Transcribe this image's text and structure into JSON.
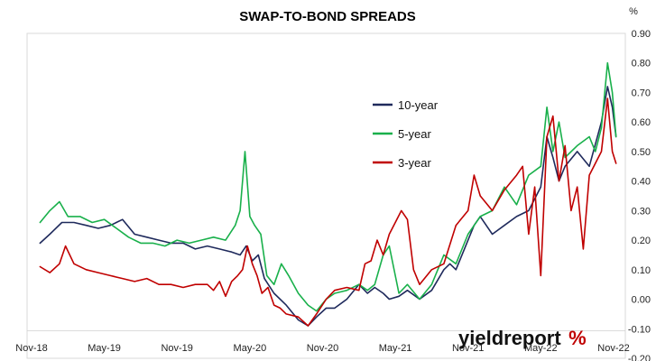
{
  "chart_data": {
    "type": "line",
    "title": "SWAP-TO-BOND SPREADS",
    "unit_label": "%",
    "x_ticks": [
      "Nov-18",
      "May-19",
      "Nov-19",
      "May-20",
      "Nov-20",
      "May-21",
      "Nov-21",
      "May-22",
      "Nov-22"
    ],
    "x_tick_months": [
      0,
      6,
      12,
      18,
      24,
      30,
      36,
      42,
      48
    ],
    "xlim": [
      0,
      48.3
    ],
    "y_ticks": [
      "0.90",
      "0.80",
      "0.70",
      "0.60",
      "0.50",
      "0.40",
      "0.30",
      "0.20",
      "0.10",
      "0.00",
      "-0.10",
      "-0.20"
    ],
    "y_tick_values": [
      0.9,
      0.8,
      0.7,
      0.6,
      0.5,
      0.4,
      0.3,
      0.2,
      0.1,
      0.0,
      -0.1,
      -0.2
    ],
    "ylim": [
      -0.2,
      0.9
    ],
    "grid": false,
    "legend_position": "center-top",
    "series": [
      {
        "name": "10-year",
        "color": "#1f2a5c",
        "x": [
          0.7,
          1.5,
          2.5,
          3.5,
          4.5,
          5.5,
          6.5,
          7.5,
          8.5,
          9.5,
          10.5,
          11.5,
          12.5,
          13.5,
          14.5,
          15.5,
          16.5,
          17.2,
          17.7,
          18.2,
          18.7,
          19.2,
          20.0,
          21.0,
          22.0,
          22.8,
          23.5,
          24.3,
          25.0,
          26.0,
          27.0,
          27.7,
          28.3,
          29.0,
          29.5,
          30.3,
          31.0,
          32.0,
          33.0,
          34.0,
          34.5,
          35.0,
          36.0,
          36.5,
          37.0,
          38.0,
          39.0,
          40.0,
          41.0,
          42.0,
          42.5,
          43.0,
          43.5,
          44.0,
          45.0,
          46.0,
          47.0,
          47.5,
          47.9,
          48.2
        ],
        "values": [
          0.19,
          0.22,
          0.26,
          0.26,
          0.25,
          0.24,
          0.25,
          0.27,
          0.22,
          0.21,
          0.2,
          0.19,
          0.19,
          0.17,
          0.18,
          0.17,
          0.16,
          0.15,
          0.18,
          0.13,
          0.15,
          0.07,
          0.02,
          -0.02,
          -0.07,
          -0.09,
          -0.06,
          -0.03,
          -0.03,
          0.0,
          0.05,
          0.02,
          0.04,
          0.02,
          0.0,
          0.01,
          0.03,
          0.0,
          0.03,
          0.1,
          0.12,
          0.1,
          0.2,
          0.25,
          0.28,
          0.22,
          0.25,
          0.28,
          0.3,
          0.38,
          0.55,
          0.48,
          0.4,
          0.45,
          0.5,
          0.45,
          0.6,
          0.72,
          0.65,
          0.55
        ]
      },
      {
        "name": "5-year",
        "color": "#19b04b",
        "x": [
          0.7,
          1.5,
          2.3,
          3.0,
          4.0,
          5.0,
          6.0,
          7.0,
          8.0,
          9.0,
          10.0,
          11.0,
          12.0,
          13.0,
          14.0,
          15.0,
          16.0,
          16.8,
          17.2,
          17.6,
          18.0,
          18.4,
          18.9,
          19.4,
          20.0,
          20.6,
          21.2,
          22.0,
          22.8,
          23.5,
          24.3,
          25.0,
          26.0,
          27.0,
          27.7,
          28.3,
          29.0,
          29.5,
          30.3,
          31.0,
          32.0,
          33.0,
          34.0,
          35.0,
          36.0,
          37.0,
          38.0,
          39.0,
          40.0,
          41.0,
          42.0,
          42.5,
          43.0,
          43.5,
          44.0,
          45.0,
          46.0,
          46.5,
          47.0,
          47.5,
          47.9,
          48.2
        ],
        "values": [
          0.26,
          0.3,
          0.33,
          0.28,
          0.28,
          0.26,
          0.27,
          0.24,
          0.21,
          0.19,
          0.19,
          0.18,
          0.2,
          0.19,
          0.2,
          0.21,
          0.2,
          0.25,
          0.3,
          0.5,
          0.28,
          0.25,
          0.22,
          0.08,
          0.05,
          0.12,
          0.08,
          0.02,
          -0.02,
          -0.04,
          0.0,
          0.02,
          0.03,
          0.05,
          0.03,
          0.05,
          0.15,
          0.18,
          0.02,
          0.05,
          0.0,
          0.05,
          0.15,
          0.12,
          0.22,
          0.28,
          0.3,
          0.38,
          0.32,
          0.42,
          0.45,
          0.65,
          0.5,
          0.6,
          0.48,
          0.52,
          0.55,
          0.5,
          0.58,
          0.8,
          0.7,
          0.55
        ]
      },
      {
        "name": "3-year",
        "color": "#c00000",
        "x": [
          0.7,
          1.5,
          2.3,
          2.8,
          3.5,
          4.5,
          5.5,
          6.5,
          7.5,
          8.5,
          9.5,
          10.5,
          11.5,
          12.5,
          13.5,
          14.5,
          15.0,
          15.5,
          16.0,
          16.5,
          17.0,
          17.4,
          17.8,
          18.2,
          18.6,
          19.0,
          19.5,
          20.0,
          20.5,
          21.0,
          22.0,
          22.8,
          23.5,
          24.3,
          25.0,
          26.0,
          27.0,
          27.5,
          28.0,
          28.5,
          29.0,
          29.5,
          30.0,
          30.5,
          31.0,
          31.5,
          32.0,
          33.0,
          34.0,
          35.0,
          36.0,
          36.5,
          37.0,
          38.0,
          39.0,
          40.0,
          40.5,
          41.0,
          41.5,
          42.0,
          42.5,
          43.0,
          43.5,
          44.0,
          44.5,
          45.0,
          45.5,
          46.0,
          47.0,
          47.5,
          47.9,
          48.2
        ],
        "values": [
          0.11,
          0.09,
          0.12,
          0.18,
          0.12,
          0.1,
          0.09,
          0.08,
          0.07,
          0.06,
          0.07,
          0.05,
          0.05,
          0.04,
          0.05,
          0.05,
          0.03,
          0.06,
          0.01,
          0.06,
          0.08,
          0.1,
          0.18,
          0.12,
          0.08,
          0.02,
          0.04,
          -0.02,
          -0.03,
          -0.05,
          -0.06,
          -0.09,
          -0.05,
          0.0,
          0.03,
          0.04,
          0.03,
          0.12,
          0.13,
          0.2,
          0.15,
          0.22,
          0.26,
          0.3,
          0.27,
          0.1,
          0.05,
          0.1,
          0.12,
          0.25,
          0.3,
          0.42,
          0.35,
          0.3,
          0.37,
          0.42,
          0.45,
          0.22,
          0.38,
          0.08,
          0.55,
          0.62,
          0.4,
          0.52,
          0.3,
          0.38,
          0.17,
          0.42,
          0.5,
          0.68,
          0.5,
          0.46
        ]
      }
    ]
  },
  "branding": {
    "part1": "yieldreport",
    "part2": "%"
  }
}
